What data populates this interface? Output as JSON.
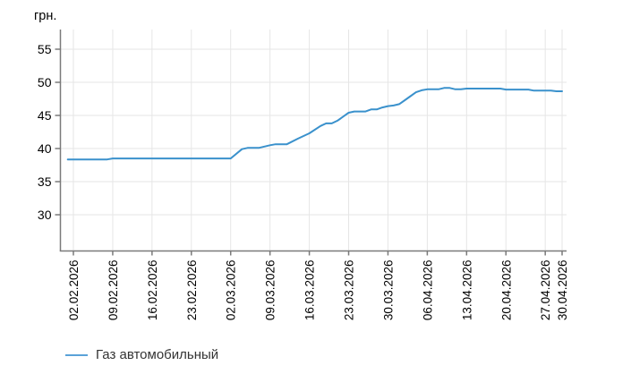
{
  "page": {
    "background": "#ffffff"
  },
  "chart_data": {
    "type": "line",
    "title": "",
    "unit_label": "грн.",
    "xlabel": "",
    "ylabel": "грн.",
    "grid": true,
    "legend_position": "bottom-left",
    "y_tick_labels": [
      55,
      50,
      45,
      40,
      35,
      30
    ],
    "ylim": [
      24.6,
      58.0
    ],
    "x_tick_labels": [
      "02.02.2026",
      "09.02.2026",
      "16.02.2026",
      "23.02.2026",
      "02.03.2026",
      "09.03.2026",
      "16.03.2026",
      "23.03.2026",
      "30.03.2026",
      "06.04.2026",
      "13.04.2026",
      "20.04.2026",
      "27.04.2026",
      "30.04.2026"
    ],
    "colors": {
      "line": "#3a91cc",
      "legend_line": "#5aa2d8",
      "grid": "#e6e6e6",
      "axis": "#7a7a7a",
      "text": "#000000"
    },
    "series": [
      {
        "name": "Газ автомобильный",
        "color": "#3a91cc",
        "points": [
          [
            "01.02.2026",
            38.35
          ],
          [
            "08.02.2026",
            38.35
          ],
          [
            "09.02.2026",
            38.5
          ],
          [
            "02.03.2026",
            38.5
          ],
          [
            "04.03.2026",
            39.9
          ],
          [
            "05.03.2026",
            40.1
          ],
          [
            "07.03.2026",
            40.1
          ],
          [
            "09.03.2026",
            40.5
          ],
          [
            "10.03.2026",
            40.65
          ],
          [
            "12.03.2026",
            40.65
          ],
          [
            "14.03.2026",
            41.5
          ],
          [
            "16.03.2026",
            42.3
          ],
          [
            "18.03.2026",
            43.4
          ],
          [
            "19.03.2026",
            43.8
          ],
          [
            "20.03.2026",
            43.8
          ],
          [
            "21.03.2026",
            44.2
          ],
          [
            "23.03.2026",
            45.4
          ],
          [
            "24.03.2026",
            45.6
          ],
          [
            "26.03.2026",
            45.6
          ],
          [
            "27.03.2026",
            45.9
          ],
          [
            "28.03.2026",
            45.9
          ],
          [
            "29.03.2026",
            46.2
          ],
          [
            "30.03.2026",
            46.4
          ],
          [
            "31.03.2026",
            46.5
          ],
          [
            "01.04.2026",
            46.7
          ],
          [
            "02.04.2026",
            47.3
          ],
          [
            "03.04.2026",
            47.9
          ],
          [
            "04.04.2026",
            48.5
          ],
          [
            "05.04.2026",
            48.8
          ],
          [
            "06.04.2026",
            48.95
          ],
          [
            "08.04.2026",
            48.95
          ],
          [
            "09.04.2026",
            49.15
          ],
          [
            "10.04.2026",
            49.15
          ],
          [
            "11.04.2026",
            48.95
          ],
          [
            "12.04.2026",
            48.95
          ],
          [
            "13.04.2026",
            49.05
          ],
          [
            "19.04.2026",
            49.05
          ],
          [
            "20.04.2026",
            48.9
          ],
          [
            "24.04.2026",
            48.9
          ],
          [
            "25.04.2026",
            48.75
          ],
          [
            "28.04.2026",
            48.75
          ],
          [
            "29.04.2026",
            48.65
          ],
          [
            "30.04.2026",
            48.65
          ]
        ]
      }
    ]
  }
}
